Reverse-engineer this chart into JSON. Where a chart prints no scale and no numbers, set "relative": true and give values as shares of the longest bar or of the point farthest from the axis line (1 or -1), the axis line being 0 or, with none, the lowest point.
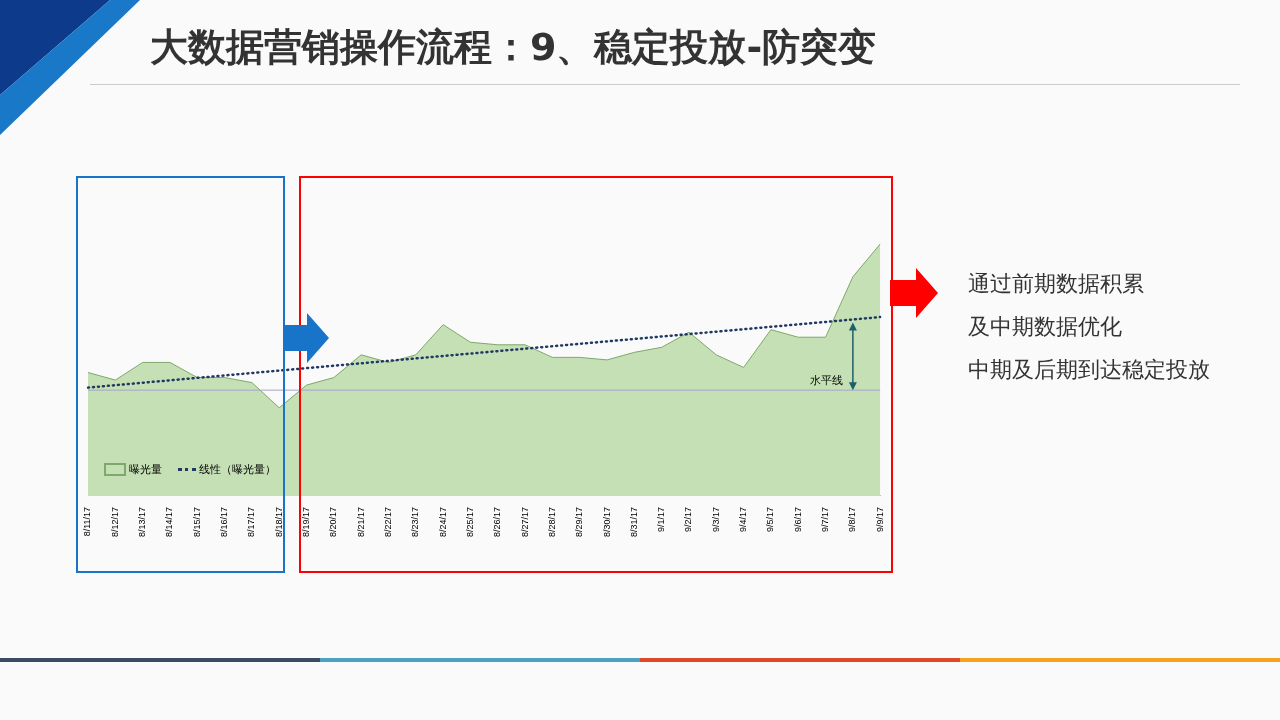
{
  "chart_data": {
    "type": "area",
    "title": "大数据营销操作流程：9、稳定投放-防突变",
    "relative": true,
    "legend": "bottom left",
    "marker": "none",
    "categories": [
      "8/11/17",
      "8/12/17",
      "8/13/17",
      "8/14/17",
      "8/15/17",
      "8/16/17",
      "8/17/17",
      "8/18/17",
      "8/19/17",
      "8/20/17",
      "8/21/17",
      "8/22/17",
      "8/23/17",
      "8/24/17",
      "8/25/17",
      "8/26/17",
      "8/27/17",
      "8/28/17",
      "8/29/17",
      "8/30/17",
      "8/31/17",
      "9/1/17",
      "9/2/17",
      "9/3/17",
      "9/4/17",
      "9/5/17",
      "9/6/17",
      "9/7/17",
      "9/8/17",
      "9/9/17"
    ],
    "series": [
      {
        "name": "曝光量",
        "color": "#c5e0b4",
        "values": [
          0.49,
          0.46,
          0.53,
          0.53,
          0.47,
          0.47,
          0.45,
          0.35,
          0.44,
          0.47,
          0.56,
          0.53,
          0.56,
          0.68,
          0.61,
          0.6,
          0.6,
          0.55,
          0.55,
          0.54,
          0.57,
          0.59,
          0.65,
          0.56,
          0.51,
          0.66,
          0.63,
          0.63,
          0.87,
          1
        ]
      },
      {
        "name": "线性（曝光量）",
        "type": "line",
        "line_style": "dotted",
        "color": "#1f3864",
        "x": [
          "8/11/17",
          "9/9/17"
        ],
        "values": [
          0.43,
          0.71
        ]
      }
    ],
    "ref_lines": [
      {
        "axis": "y",
        "value": 0.42,
        "label": "水平线",
        "color": "#a6a6c8"
      }
    ],
    "annotations": [
      "通过前期数据积累",
      "及中期数据优化",
      "中期及后期到达稳定投放"
    ]
  }
}
